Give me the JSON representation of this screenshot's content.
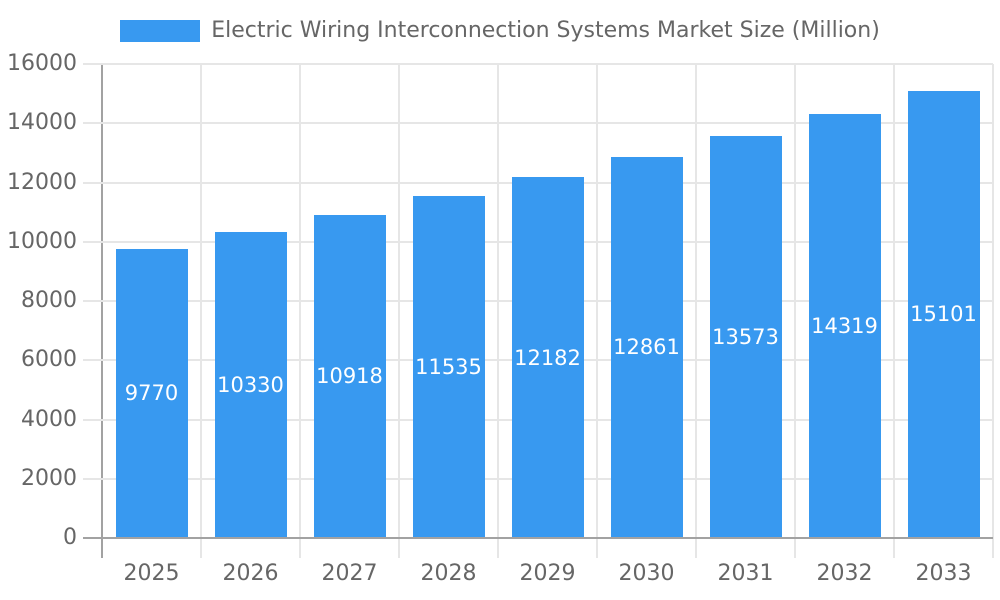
{
  "chart_data": {
    "type": "bar",
    "title": "Electric Wiring Interconnection Systems Market Size (Million)",
    "legend_label": "Electric Wiring Interconnection Systems Market Size (Million)",
    "legend_position": "top-center",
    "categories": [
      "2025",
      "2026",
      "2027",
      "2028",
      "2029",
      "2030",
      "2031",
      "2032",
      "2033"
    ],
    "values": [
      9770,
      10330,
      10918,
      11535,
      12182,
      12861,
      13573,
      14319,
      15101
    ],
    "xlabel": "",
    "ylabel": "",
    "ylim": [
      0,
      16000
    ],
    "yticks": [
      0,
      2000,
      4000,
      6000,
      8000,
      10000,
      12000,
      14000,
      16000
    ],
    "grid": true,
    "value_labels": "inside-center",
    "colors": {
      "bar": "#3899F0",
      "grid": "#e6e6e6",
      "axis_line": "#a2a2a2",
      "axis_text": "#666666",
      "value_label": "#ffffff",
      "background": "#ffffff"
    }
  }
}
